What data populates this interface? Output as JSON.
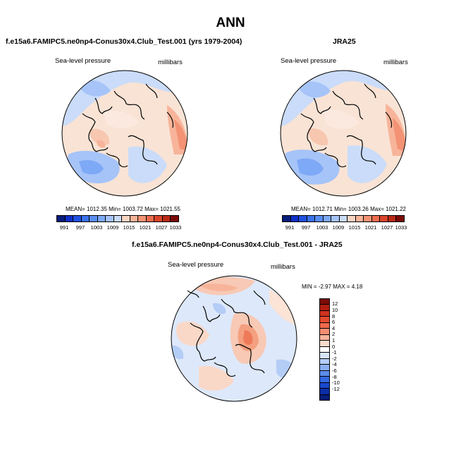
{
  "title": "ANN",
  "panels": [
    {
      "title": "f.e15a6.FAMIPC5.ne0np4-Conus30x4.Club_Test.001 (yrs 1979-2004)",
      "left_label": "Sea-level pressure",
      "right_label": "millibars",
      "stats": "MEAN= 1012.35   Min= 1003.72   Max= 1021.55"
    },
    {
      "title": "JRA25",
      "left_label": "Sea-level pressure",
      "right_label": "millibars",
      "stats": "MEAN= 1012.71   Min= 1003.26   Max= 1021.22"
    },
    {
      "title": "f.e15a6.FAMIPC5.ne0np4-Conus30x4.Club_Test.001 - JRA25",
      "left_label": "Sea-level pressure",
      "right_label": "millibars",
      "stats": "MIN = -2.97 MAX =  4.18"
    }
  ],
  "colorbar_abs": {
    "ticks": [
      "991",
      "997",
      "1003",
      "1009",
      "1015",
      "1021",
      "1027",
      "1033"
    ],
    "colors": [
      "#061d7a",
      "#1030c8",
      "#2150e0",
      "#3a72ee",
      "#5a8ef3",
      "#7ea9f6",
      "#a6c4f8",
      "#cadcf9",
      "#f9d4c2",
      "#f7b49a",
      "#f39274",
      "#ec6b4e",
      "#d9452c",
      "#bb2a18",
      "#7a0a05"
    ]
  },
  "colorbar_diff": {
    "ticks": [
      "12",
      "10",
      "8",
      "6",
      "4",
      "2",
      "1",
      "0",
      "-1",
      "-2",
      "-4",
      "-6",
      "-8",
      "-10",
      "-12"
    ],
    "colors": [
      "#7a0a05",
      "#b01e10",
      "#d03220",
      "#e54a30",
      "#ef6a4c",
      "#f48e72",
      "#f8b49c",
      "#fadbcd",
      "#ffffff",
      "#d9e6fa",
      "#b4cdf6",
      "#8bb0f2",
      "#5c8ceb",
      "#3468e3",
      "#1a48cf",
      "#0c2ea8",
      "#061d7a"
    ]
  }
}
